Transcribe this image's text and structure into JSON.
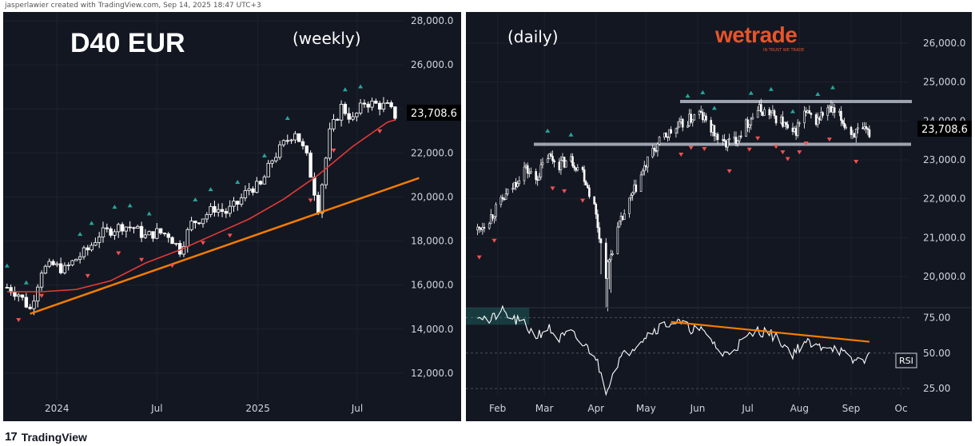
{
  "attribution": "jasperlawier created with TradingView.com, Sep 14, 2025 18:47 UTC+3",
  "footer": {
    "brand": "TradingView",
    "logo_glyph": "17"
  },
  "watermark": {
    "brand": "wetrade",
    "tagline": "IN TRUST WE TRADE"
  },
  "colors": {
    "bg": "#131722",
    "up": "#ffffff",
    "down": "#ffffff",
    "ma": "#e53935",
    "trend": "#f57c00",
    "marker_up": "#26a69a",
    "marker_down": "#ef5350",
    "last_price_bg": "#000000",
    "resistance": "#9ea3b0",
    "rsi": "#ffffff"
  },
  "chart_data": [
    {
      "type": "line",
      "title": "D40 EUR",
      "subtitle": "(weekly)",
      "x_ticks": [
        "2024",
        "Jul",
        "2025",
        "Jul"
      ],
      "y_ticks": [
        "28,000.0",
        "26,000.0",
        "24,000.0",
        "22,000.0",
        "20,000.0",
        "18,000.0",
        "16,000.0",
        "14,000.0",
        "12,000.0"
      ],
      "ylim": [
        10800,
        28400
      ],
      "last_price": "23,708.6",
      "series": [
        {
          "name": "",
          "x": [
            "2023-10-02",
            "2023-10-23",
            "2023-11-13",
            "2023-12-04",
            "2023-12-25",
            "2024-01-15",
            "2024-02-05",
            "2024-02-26",
            "2024-03-18",
            "2024-04-08",
            "2024-04-29",
            "2024-05-20",
            "2024-06-10",
            "2024-07-01",
            "2024-07-22",
            "2024-08-12",
            "2024-09-02",
            "2024-09-23",
            "2024-10-14",
            "2024-11-04",
            "2024-11-25",
            "2024-12-16",
            "2025-01-06",
            "2025-01-27",
            "2025-02-17",
            "2025-03-10",
            "2025-03-31",
            "2025-04-21",
            "2025-05-12",
            "2025-06-02",
            "2025-06-23",
            "2025-07-14",
            "2025-08-04",
            "2025-08-25",
            "2025-09-08"
          ],
          "values": [
            15900,
            15600,
            14900,
            16700,
            16900,
            16700,
            17200,
            17600,
            18300,
            18500,
            18700,
            18600,
            18200,
            18400,
            18300,
            17600,
            18800,
            19100,
            19500,
            19300,
            19700,
            20400,
            20500,
            21700,
            22400,
            23000,
            21800,
            19500,
            22900,
            24100,
            23500,
            24300,
            24200,
            24100,
            23700
          ]
        },
        {
          "name": "",
          "x": [
            "2023-10-02",
            "2023-12-04",
            "2024-02-05",
            "2024-04-08",
            "2024-06-10",
            "2024-08-12",
            "2024-10-14",
            "2024-12-16",
            "2025-02-17",
            "2025-04-21",
            "2025-06-23",
            "2025-08-25",
            "2025-09-08"
          ],
          "values": [
            15700,
            15700,
            15800,
            16200,
            17000,
            17600,
            18300,
            19000,
            19900,
            21000,
            22300,
            23400,
            23500
          ]
        },
        {
          "name": "",
          "x": [
            "2023-11-13",
            "2025-09-08"
          ],
          "values": [
            14700,
            20500
          ]
        }
      ]
    },
    {
      "type": "line",
      "subtitle": "(daily)",
      "x_ticks": [
        "Feb",
        "Mar",
        "Apr",
        "May",
        "Jun",
        "Jul",
        "Aug",
        "Sep",
        "Oc"
      ],
      "y_ticks": [
        "26,000.0",
        "25,000.0",
        "24,000.0",
        "23,000.0",
        "22,000.0",
        "21,000.0",
        "20,000.0"
      ],
      "ylim": [
        19200,
        26800
      ],
      "last_price": "23,708.6",
      "resistance_levels": [
        24500,
        23400
      ],
      "series": [
        {
          "name": "",
          "x": [
            "2025-01-20",
            "2025-01-27",
            "2025-02-03",
            "2025-02-10",
            "2025-02-17",
            "2025-02-24",
            "2025-03-03",
            "2025-03-10",
            "2025-03-17",
            "2025-03-24",
            "2025-03-31",
            "2025-04-07",
            "2025-04-14",
            "2025-04-21",
            "2025-04-28",
            "2025-05-05",
            "2025-05-12",
            "2025-05-19",
            "2025-05-26",
            "2025-06-02",
            "2025-06-09",
            "2025-06-16",
            "2025-06-23",
            "2025-06-30",
            "2025-07-07",
            "2025-07-14",
            "2025-07-21",
            "2025-07-28",
            "2025-08-04",
            "2025-08-11",
            "2025-08-18",
            "2025-08-25",
            "2025-09-01",
            "2025-09-08",
            "2025-09-12"
          ],
          "values": [
            21200,
            21500,
            21900,
            22300,
            22800,
            22500,
            23100,
            22900,
            23000,
            22700,
            21800,
            20100,
            21200,
            21900,
            22600,
            23200,
            23600,
            23800,
            24000,
            24200,
            23800,
            23400,
            23500,
            23900,
            24300,
            24200,
            24000,
            23600,
            24200,
            24000,
            24300,
            24100,
            23700,
            23700,
            23700
          ]
        }
      ],
      "rsi": {
        "label": "RSI",
        "y_ticks": [
          "75.00",
          "50.00",
          "25.00"
        ],
        "ylim": [
          20,
          82
        ],
        "x": [
          "2025-01-20",
          "2025-01-27",
          "2025-02-03",
          "2025-02-10",
          "2025-02-17",
          "2025-02-24",
          "2025-03-03",
          "2025-03-10",
          "2025-03-17",
          "2025-03-24",
          "2025-03-31",
          "2025-04-07",
          "2025-04-14",
          "2025-04-21",
          "2025-04-28",
          "2025-05-05",
          "2025-05-12",
          "2025-05-19",
          "2025-05-26",
          "2025-06-02",
          "2025-06-09",
          "2025-06-16",
          "2025-06-23",
          "2025-06-30",
          "2025-07-07",
          "2025-07-14",
          "2025-07-21",
          "2025-07-28",
          "2025-08-04",
          "2025-08-11",
          "2025-08-18",
          "2025-08-25",
          "2025-09-01",
          "2025-09-08",
          "2025-09-12"
        ],
        "values": [
          78,
          72,
          80,
          74,
          70,
          62,
          68,
          60,
          64,
          56,
          50,
          24,
          44,
          52,
          60,
          66,
          70,
          72,
          68,
          66,
          60,
          48,
          54,
          60,
          66,
          64,
          58,
          50,
          58,
          54,
          56,
          52,
          44,
          46,
          47
        ],
        "trendline": {
          "x": [
            "2025-05-16",
            "2025-09-12"
          ],
          "values": [
            72,
            58
          ]
        }
      }
    }
  ]
}
